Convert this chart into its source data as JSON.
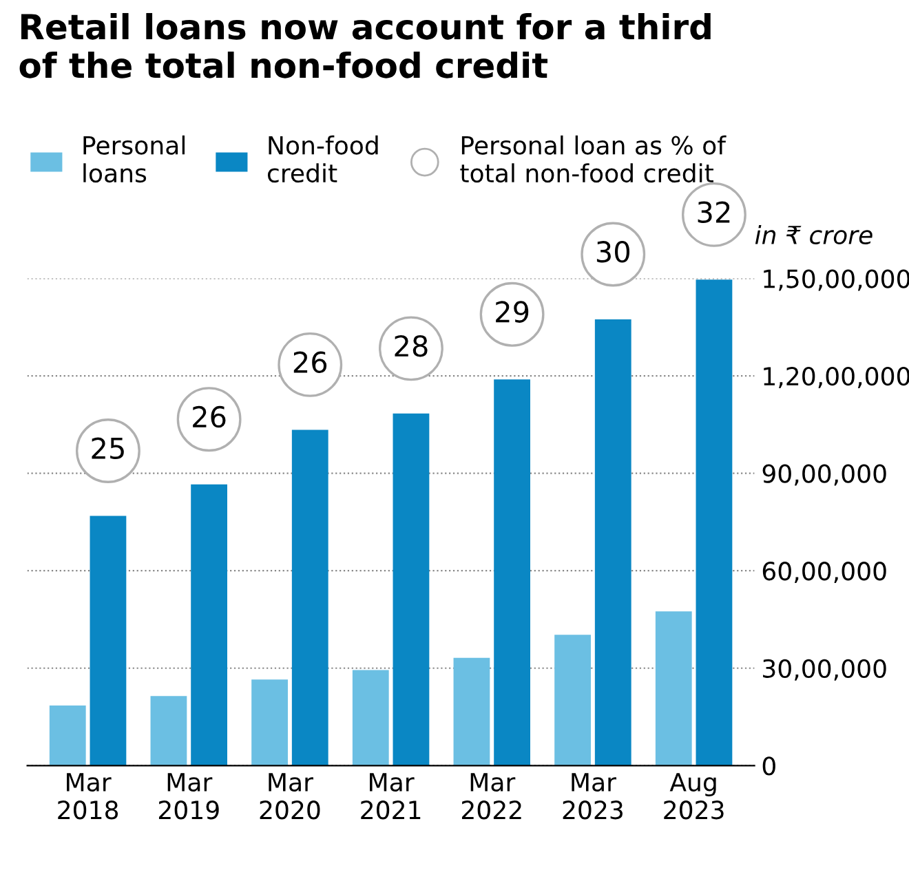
{
  "chart_data": {
    "type": "bar",
    "title": "Retail loans now account for a third\nof the total non-food credit",
    "ylabel": "in ₹ crore",
    "categories": [
      "Mar\n2018",
      "Mar\n2019",
      "Mar\n2020",
      "Mar\n2021",
      "Mar\n2022",
      "Mar\n2023",
      "Aug\n2023"
    ],
    "series": [
      {
        "name": "Personal\nloans",
        "color": "#6bbfe3",
        "values": [
          1850000,
          2140000,
          2650000,
          2940000,
          3320000,
          4030000,
          4750000
        ]
      },
      {
        "name": "Non-food\ncredit",
        "color": "#0a87c4",
        "values": [
          7690000,
          8660000,
          10340000,
          10840000,
          11890000,
          13740000,
          14960000
        ]
      }
    ],
    "annotations": [
      "Personal loan as % of\ntotal non-food credit",
      {
        "text": "25",
        "x": "Mar\n2018",
        "y": 7690000
      },
      {
        "text": "26",
        "x": "Mar\n2019",
        "y": 8660000
      },
      {
        "text": "26",
        "x": "Mar\n2020",
        "y": 10340000
      },
      {
        "text": "28",
        "x": "Mar\n2021",
        "y": 10840000
      },
      {
        "text": "29",
        "x": "Mar\n2022",
        "y": 11890000
      },
      {
        "text": "30",
        "x": "Mar\n2023",
        "y": 13740000
      },
      {
        "text": "32",
        "x": "Aug\n2023",
        "y": 14960000
      }
    ],
    "ylim": [
      0,
      15000000
    ],
    "yticks": [
      0,
      {
        "value": 3000000,
        "label": "30,00,000"
      },
      {
        "value": 6000000,
        "label": "60,00,000"
      },
      {
        "value": 9000000,
        "label": "90,00,000"
      },
      {
        "value": 12000000,
        "label": "1,20,00,000"
      },
      {
        "value": 15000000,
        "label": "1,50,00,000"
      }
    ],
    "grid": "y",
    "legend": "top left"
  }
}
